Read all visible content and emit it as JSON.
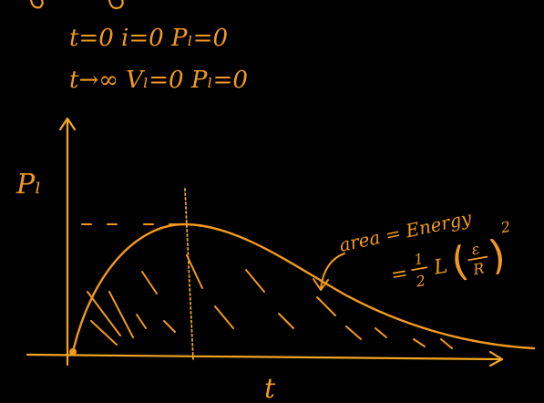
{
  "notes": {
    "line1": "t=0  i=0  Pₗ=0",
    "line2": "t→∞  Vₗ=0  Pₗ=0"
  },
  "axes": {
    "y_label": "Pₗ",
    "x_label": "t"
  },
  "annotation": {
    "area_label": "area = Energy",
    "formula_prefix": "=",
    "half_num": "1",
    "half_den": "2",
    "L": "L",
    "open_paren": "(",
    "frac_num": "ε",
    "frac_den": "R",
    "close_paren": ")",
    "exponent": "2"
  },
  "colors": {
    "ink": "#F29A1F",
    "axis": "#F5A623",
    "background": "#000000"
  }
}
